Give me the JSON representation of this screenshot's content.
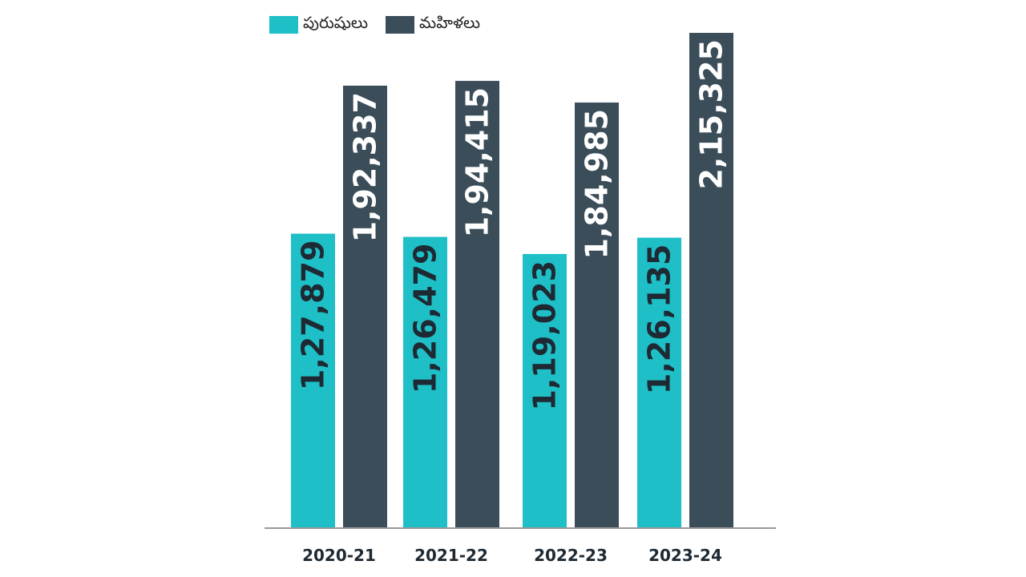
{
  "chart_data": {
    "type": "bar",
    "categories": [
      "2020-21",
      "2021-22",
      "2022-23",
      "2023-24"
    ],
    "series": [
      {
        "name": "పురుషులు",
        "color": "#1fbfc7",
        "values": [
          127879,
          126479,
          119023,
          126135
        ],
        "labels": [
          "1,27,879",
          "1,26,479",
          "1,19,023",
          "1,26,135"
        ]
      },
      {
        "name": "మహిళలు",
        "color": "#3b4d59",
        "values": [
          192337,
          194415,
          184985,
          215325
        ],
        "labels": [
          "1,92,337",
          "1,94,415",
          "1,84,985",
          "2,15,325"
        ]
      }
    ],
    "ylim": [
      0,
      220000
    ],
    "grid": false,
    "legend_position": "top-left",
    "baseline_color": "#999999"
  }
}
